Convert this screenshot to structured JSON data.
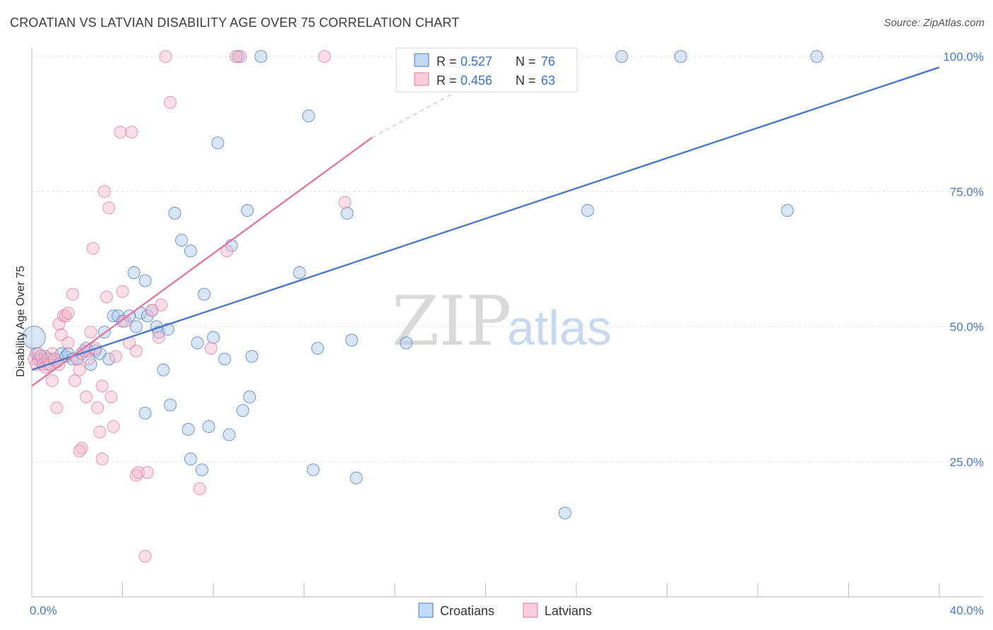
{
  "title": "CROATIAN VS LATVIAN DISABILITY AGE OVER 75 CORRELATION CHART",
  "source": "Source: ZipAtlas.com",
  "watermark": {
    "zip": "ZIP",
    "atlas": "atlas"
  },
  "colors": {
    "croatians": "#4a7ac7",
    "croatians_fill": "#a9c7ef",
    "latvians": "#e07aa0",
    "latvians_fill": "#f6b8cc",
    "grid": "#e6e6e6",
    "axis": "#bbbbbb"
  },
  "legend": {
    "r_label": "R =",
    "n_label": "N =",
    "croatians": {
      "r": "0.527",
      "n": "76"
    },
    "latvians": {
      "r": "0.456",
      "n": "63"
    }
  },
  "chart_data": {
    "type": "scatter",
    "title": "CROATIAN VS LATVIAN DISABILITY AGE OVER 75 CORRELATION CHART",
    "xlabel": "",
    "ylabel": "Disability Age Over 75",
    "xlim": [
      0,
      40
    ],
    "ylim": [
      0,
      100
    ],
    "x_tick_labels": [
      {
        "value": 0,
        "label": "0.0%"
      },
      {
        "value": 40,
        "label": "40.0%"
      }
    ],
    "y_tick_labels": [
      {
        "value": 25,
        "label": "25.0%"
      },
      {
        "value": 50,
        "label": "50.0%"
      },
      {
        "value": 75,
        "label": "75.0%"
      },
      {
        "value": 100,
        "label": "100.0%"
      }
    ],
    "x_minor_ticks": [
      4,
      8,
      12,
      16,
      20,
      24,
      28,
      32,
      36
    ],
    "grid": true,
    "legend_position": "top-center",
    "series": [
      {
        "name": "Croatians",
        "color": "#4a7ac7",
        "r": 0.527,
        "n": 76,
        "trend": {
          "x": [
            0,
            40
          ],
          "y": [
            42,
            98
          ]
        },
        "points": [
          [
            0.1,
            48
          ],
          [
            0.2,
            45
          ],
          [
            0.3,
            44
          ],
          [
            0.4,
            43.5
          ],
          [
            0.5,
            44
          ],
          [
            0.6,
            44.5
          ],
          [
            0.7,
            43
          ],
          [
            0.8,
            44
          ],
          [
            1.0,
            44
          ],
          [
            1.1,
            43.5
          ],
          [
            1.3,
            45
          ],
          [
            1.5,
            44.5
          ],
          [
            1.6,
            45
          ],
          [
            1.8,
            44
          ],
          [
            2.0,
            44
          ],
          [
            2.2,
            45
          ],
          [
            2.4,
            46
          ],
          [
            2.5,
            45.5
          ],
          [
            2.6,
            43
          ],
          [
            2.8,
            45.5
          ],
          [
            3.0,
            45
          ],
          [
            3.2,
            49
          ],
          [
            3.4,
            44
          ],
          [
            3.6,
            52
          ],
          [
            3.8,
            52
          ],
          [
            4.0,
            51
          ],
          [
            4.3,
            52
          ],
          [
            4.5,
            60
          ],
          [
            4.6,
            50
          ],
          [
            4.8,
            52.5
          ],
          [
            5.0,
            58.5
          ],
          [
            5.1,
            52
          ],
          [
            5.3,
            53
          ],
          [
            5.5,
            50
          ],
          [
            5.6,
            49
          ],
          [
            5.8,
            42
          ],
          [
            6.0,
            49.5
          ],
          [
            6.3,
            71
          ],
          [
            6.6,
            66
          ],
          [
            7.0,
            64
          ],
          [
            7.3,
            47
          ],
          [
            7.6,
            56
          ],
          [
            8.0,
            48
          ],
          [
            8.2,
            84
          ],
          [
            8.5,
            44
          ],
          [
            8.8,
            65
          ],
          [
            9.1,
            100
          ],
          [
            9.5,
            71.5
          ],
          [
            9.7,
            44.5
          ],
          [
            10.1,
            100
          ],
          [
            11.8,
            60
          ],
          [
            12.2,
            89
          ],
          [
            12.6,
            46
          ],
          [
            13.9,
            71
          ],
          [
            14.1,
            47.5
          ],
          [
            16.5,
            47
          ],
          [
            17.5,
            100
          ],
          [
            22.3,
            100
          ],
          [
            24.5,
            71.5
          ],
          [
            26.0,
            100
          ],
          [
            28.6,
            100
          ],
          [
            33.3,
            71.5
          ],
          [
            34.6,
            100
          ],
          [
            5.0,
            34
          ],
          [
            6.1,
            35.5
          ],
          [
            6.9,
            31
          ],
          [
            7.5,
            23.5
          ],
          [
            7.8,
            31.5
          ],
          [
            8.7,
            30
          ],
          [
            9.3,
            34.5
          ],
          [
            9.6,
            37
          ],
          [
            12.4,
            23.5
          ],
          [
            14.3,
            22
          ],
          [
            23.5,
            15.5
          ],
          [
            7.0,
            25.5
          ],
          [
            18.4,
            95
          ]
        ]
      },
      {
        "name": "Latvians",
        "color": "#e07aa0",
        "r": 0.456,
        "n": 63,
        "trend": {
          "x": [
            0,
            15
          ],
          "y": [
            39,
            85
          ]
        },
        "trend_extension": {
          "x": [
            15,
            18.5
          ],
          "y": [
            85,
            93
          ]
        },
        "points": [
          [
            0.1,
            44
          ],
          [
            0.2,
            43
          ],
          [
            0.3,
            45
          ],
          [
            0.4,
            44.5
          ],
          [
            0.5,
            43
          ],
          [
            0.6,
            42.5
          ],
          [
            0.7,
            44
          ],
          [
            0.8,
            43
          ],
          [
            0.9,
            45
          ],
          [
            1.0,
            44
          ],
          [
            1.1,
            35
          ],
          [
            1.2,
            50.5
          ],
          [
            1.3,
            48.5
          ],
          [
            1.4,
            52
          ],
          [
            1.5,
            52
          ],
          [
            1.6,
            47
          ],
          [
            1.8,
            56
          ],
          [
            1.9,
            40
          ],
          [
            2.0,
            44
          ],
          [
            2.1,
            42
          ],
          [
            2.2,
            27.5
          ],
          [
            2.4,
            37
          ],
          [
            2.5,
            44
          ],
          [
            2.6,
            49
          ],
          [
            2.7,
            64.5
          ],
          [
            2.8,
            46
          ],
          [
            2.9,
            35
          ],
          [
            3.0,
            30.5
          ],
          [
            3.1,
            39
          ],
          [
            3.2,
            75
          ],
          [
            3.3,
            55.5
          ],
          [
            3.4,
            72
          ],
          [
            3.5,
            37
          ],
          [
            3.6,
            31.5
          ],
          [
            3.7,
            44.5
          ],
          [
            3.9,
            86
          ],
          [
            4.0,
            56.5
          ],
          [
            4.1,
            51
          ],
          [
            4.3,
            47
          ],
          [
            4.4,
            86
          ],
          [
            4.6,
            22.5
          ],
          [
            4.7,
            23
          ],
          [
            5.0,
            7.5
          ],
          [
            5.3,
            53
          ],
          [
            5.6,
            48
          ],
          [
            5.7,
            54
          ],
          [
            5.9,
            100
          ],
          [
            6.1,
            91.5
          ],
          [
            7.4,
            20
          ],
          [
            7.9,
            46
          ],
          [
            8.6,
            64
          ],
          [
            9.2,
            100
          ],
          [
            12.9,
            100
          ],
          [
            13.8,
            73
          ],
          [
            2.1,
            27
          ],
          [
            3.1,
            25.5
          ],
          [
            1.2,
            43
          ],
          [
            0.9,
            40
          ],
          [
            1.6,
            52.5
          ],
          [
            2.3,
            45.5
          ],
          [
            4.6,
            45.5
          ],
          [
            5.1,
            23
          ],
          [
            9.0,
            100
          ]
        ]
      }
    ]
  },
  "bottom_legend": [
    "Croatians",
    "Latvians"
  ]
}
